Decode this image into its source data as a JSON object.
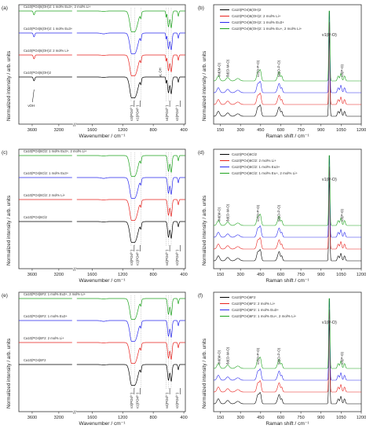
{
  "figure": {
    "panels": [
      {
        "letter": "(a)",
        "kind": "ftir",
        "legend": [
          "Ca10(PO4)6(OH)2: 1 mol% Eu3+, 2 mol% Li+",
          "Ca10(PO4)6(OH)2: 1 mol% Eu3+",
          "Ca10(PO4)6(OH)2: 2 mol% Li+",
          "Ca10(PO4)6(OH)2"
        ],
        "extra_label": "νOH",
        "liboh": "νL OH"
      },
      {
        "letter": "(b)",
        "kind": "raman",
        "legend": [
          "Ca10(PO4)6(OH)2",
          "Ca10(PO4)6(OH)2: 2 mol% Li+",
          "Ca10(PO4)6(OH)2: 1 mol% Eu3+",
          "Ca10(PO4)6(OH)2: 1 mol% Eu+, 2 mol% Li+"
        ]
      },
      {
        "letter": "(c)",
        "kind": "ftir",
        "legend": [
          "Ca10(PO4)6Cl2: 1 mol% Eu3+, 2 mol% Li+",
          "Ca10(PO4)6Cl2: 1 mol% Eu3+",
          "Ca10(PO4)6Cl2: 2 mol% Li+",
          "Ca10(PO4)6Cl2"
        ]
      },
      {
        "letter": "(d)",
        "kind": "raman",
        "legend": [
          "Ca10(PO4)6Cl2",
          "Ca10(PO4)6Cl2: 2 mol% Li+",
          "Ca10(PO4)6Cl2: 1 mol% Eu3+",
          "Ca10(PO4)6Cl2: 1 mol% Eu+, 2 mol% Li+"
        ]
      },
      {
        "letter": "(e)",
        "kind": "ftir",
        "legend": [
          "Ca10(PO4)6F2: 1 mol% Eu3+, 2 mol% Li+",
          "Ca10(PO4)6F2: 1 mol% Eu3+",
          "Ca10(PO4)6F2: 2 mol% Li+",
          "Ca10(PO4)6F2"
        ]
      },
      {
        "letter": "(f)",
        "kind": "raman",
        "legend": [
          "Ca10(PO4)6F2",
          "Ca10(PO4)6F2: 2 mol% Li+",
          "Ca10(PO4)6F2: 1 mol% Eu3+",
          "Ca10(PO4)6F2: 1 mol% Eu+, 2 mol% Li+"
        ]
      }
    ],
    "ftir_axis": {
      "xlabel": "Wavenumber / cm⁻¹",
      "ylabel": "Normalized intensity / arb. units",
      "ticks": [
        "3600",
        "3200",
        "1600",
        "1200",
        "800",
        "400"
      ]
    },
    "raman_axis": {
      "xlabel": "Raman shift / cm⁻¹",
      "ylabel": "Normalized intensity / arb. units",
      "ticks": [
        "150",
        "300",
        "450",
        "600",
        "750",
        "900",
        "1050",
        "1200"
      ]
    },
    "ftir_peak_labels": [
      "ν3(PO4³⁻)",
      "ν1(PO4³⁻)",
      "ν4(PO4³⁻)",
      "ν2(PO4³⁻)"
    ],
    "ftir_oh_label": "νL OH",
    "raman_peak_labels": [
      "ν1(P-O)",
      "νM(M-O)",
      "δd(O-M-O)",
      "ν2(O-P-O)",
      "ν4(O-P-O)",
      "ν3(P-O)"
    ]
  },
  "chart_data": [
    {
      "type": "line",
      "panel": "(a)",
      "title": "",
      "xlabel": "Wavenumber / cm-1",
      "ylabel": "Normalized intensity / arb. units",
      "xlim": [
        3800,
        380
      ],
      "x_reversed": true,
      "x_break": [
        3000,
        1800
      ],
      "x_ticks": [
        3600,
        3200,
        1600,
        1200,
        800,
        400
      ],
      "series": [
        {
          "name": "Ca10(PO4)6(OH)2",
          "color": "#000000",
          "baseline_offset": 0,
          "absorption_bands_cm-1": [
            3572,
            1090,
            1040,
            962,
            632,
            601,
            565,
            472
          ]
        },
        {
          "name": "Ca10(PO4)6(OH)2: 2 mol% Li+",
          "color": "#e8211d",
          "baseline_offset": 1,
          "absorption_bands_cm-1": [
            3572,
            1090,
            1040,
            962,
            632,
            601,
            565,
            472
          ]
        },
        {
          "name": "Ca10(PO4)6(OH)2: 1 mol% Eu3+",
          "color": "#2a2aee",
          "baseline_offset": 2,
          "absorption_bands_cm-1": [
            3572,
            1090,
            1040,
            962,
            632,
            601,
            565,
            472
          ]
        },
        {
          "name": "Ca10(PO4)6(OH)2: 1 mol% Eu3+, 2 mol% Li+",
          "color": "#1ea31e",
          "baseline_offset": 3,
          "absorption_bands_cm-1": [
            3572,
            1090,
            1040,
            962,
            632,
            601,
            565,
            472
          ]
        }
      ]
    },
    {
      "type": "line",
      "panel": "(b)",
      "title": "",
      "xlabel": "Raman shift / cm-1",
      "ylabel": "Normalized intensity / arb. units",
      "xlim": [
        100,
        1200
      ],
      "x_ticks": [
        150,
        300,
        450,
        600,
        750,
        900,
        1050,
        1200
      ],
      "series": [
        {
          "name": "Ca10(PO4)6(OH)2",
          "color": "#000000",
          "baseline_offset": 0,
          "bands_cm-1": [
            130,
            200,
            430,
            448,
            580,
            590,
            605,
            962,
            1028,
            1048,
            1075
          ]
        },
        {
          "name": "Ca10(PO4)6(OH)2: 2 mol% Li+",
          "color": "#e8211d",
          "baseline_offset": 1,
          "bands_cm-1": [
            130,
            200,
            430,
            448,
            580,
            590,
            605,
            962,
            1028,
            1048,
            1075
          ]
        },
        {
          "name": "Ca10(PO4)6(OH)2: 1 mol% Eu3+",
          "color": "#2a2aee",
          "baseline_offset": 2,
          "bands_cm-1": [
            130,
            200,
            430,
            448,
            580,
            590,
            605,
            962,
            1028,
            1048,
            1075
          ]
        },
        {
          "name": "Ca10(PO4)6(OH)2: 1 mol% Eu+, 2 mol% Li+",
          "color": "#1ea31e",
          "baseline_offset": 3,
          "bands_cm-1": [
            130,
            200,
            430,
            448,
            580,
            590,
            605,
            962,
            1028,
            1048,
            1075
          ]
        }
      ]
    },
    {
      "type": "line",
      "panel": "(c)",
      "title": "",
      "xlabel": "Wavenumber / cm-1",
      "ylabel": "Normalized intensity / arb. units",
      "xlim": [
        3800,
        380
      ],
      "x_reversed": true,
      "x_break": [
        3000,
        1800
      ],
      "x_ticks": [
        3600,
        3200,
        1600,
        1200,
        800,
        400
      ],
      "series": [
        {
          "name": "Ca10(PO4)6Cl2",
          "color": "#000000",
          "baseline_offset": 0,
          "absorption_bands_cm-1": [
            1090,
            1040,
            962,
            601,
            565,
            472
          ]
        },
        {
          "name": "Ca10(PO4)6Cl2: 2 mol% Li+",
          "color": "#e8211d",
          "baseline_offset": 1,
          "absorption_bands_cm-1": [
            1090,
            1040,
            962,
            601,
            565,
            472
          ]
        },
        {
          "name": "Ca10(PO4)6Cl2: 1 mol% Eu3+",
          "color": "#2a2aee",
          "baseline_offset": 2,
          "absorption_bands_cm-1": [
            1090,
            1040,
            962,
            601,
            565,
            472
          ]
        },
        {
          "name": "Ca10(PO4)6Cl2: 1 mol% Eu3+, 2 mol% Li+",
          "color": "#1ea31e",
          "baseline_offset": 3,
          "absorption_bands_cm-1": [
            1090,
            1040,
            962,
            601,
            565,
            472
          ]
        }
      ]
    },
    {
      "type": "line",
      "panel": "(d)",
      "title": "",
      "xlabel": "Raman shift / cm-1",
      "ylabel": "Normalized intensity / arb. units",
      "xlim": [
        100,
        1200
      ],
      "x_ticks": [
        150,
        300,
        450,
        600,
        750,
        900,
        1050,
        1200
      ],
      "series": [
        {
          "name": "Ca10(PO4)6Cl2",
          "color": "#000000",
          "baseline_offset": 0,
          "bands_cm-1": [
            130,
            200,
            430,
            448,
            580,
            590,
            605,
            962,
            1028,
            1048,
            1075
          ]
        },
        {
          "name": "Ca10(PO4)6Cl2: 2 mol% Li+",
          "color": "#e8211d",
          "baseline_offset": 1,
          "bands_cm-1": [
            130,
            200,
            430,
            448,
            580,
            590,
            605,
            962,
            1028,
            1048,
            1075
          ]
        },
        {
          "name": "Ca10(PO4)6Cl2: 1 mol% Eu3+",
          "color": "#2a2aee",
          "baseline_offset": 2,
          "bands_cm-1": [
            130,
            200,
            430,
            448,
            580,
            590,
            605,
            962,
            1028,
            1048,
            1075
          ]
        },
        {
          "name": "Ca10(PO4)6Cl2: 1 mol% Eu+, 2 mol% Li+",
          "color": "#1ea31e",
          "baseline_offset": 3,
          "bands_cm-1": [
            130,
            200,
            430,
            448,
            580,
            590,
            605,
            962,
            1028,
            1048,
            1075
          ]
        }
      ]
    },
    {
      "type": "line",
      "panel": "(e)",
      "title": "",
      "xlabel": "Wavenumber / cm-1",
      "ylabel": "Normalized intensity / arb. units",
      "xlim": [
        3800,
        380
      ],
      "x_reversed": true,
      "x_break": [
        3000,
        1800
      ],
      "x_ticks": [
        3600,
        3200,
        1600,
        1200,
        800,
        400
      ],
      "series": [
        {
          "name": "Ca10(PO4)6F2",
          "color": "#000000",
          "baseline_offset": 0,
          "absorption_bands_cm-1": [
            1090,
            1040,
            962,
            601,
            565,
            472
          ]
        },
        {
          "name": "Ca10(PO4)6F2: 2 mol% Li+",
          "color": "#e8211d",
          "baseline_offset": 1,
          "absorption_bands_cm-1": [
            1090,
            1040,
            962,
            601,
            565,
            472
          ]
        },
        {
          "name": "Ca10(PO4)6F2: 1 mol% Eu3+",
          "color": "#2a2aee",
          "baseline_offset": 2,
          "absorption_bands_cm-1": [
            1090,
            1040,
            962,
            601,
            565,
            472
          ]
        },
        {
          "name": "Ca10(PO4)6F2: 1 mol% Eu3+, 2 mol% Li+",
          "color": "#1ea31e",
          "baseline_offset": 3,
          "absorption_bands_cm-1": [
            1090,
            1040,
            962,
            601,
            565,
            472
          ]
        }
      ]
    },
    {
      "type": "line",
      "panel": "(f)",
      "title": "",
      "xlabel": "Raman shift / cm-1",
      "ylabel": "Normalized intensity / arb. units",
      "xlim": [
        100,
        1200
      ],
      "x_ticks": [
        150,
        300,
        450,
        600,
        750,
        900,
        1050,
        1200
      ],
      "series": [
        {
          "name": "Ca10(PO4)6F2",
          "color": "#000000",
          "baseline_offset": 0,
          "bands_cm-1": [
            130,
            200,
            430,
            448,
            580,
            590,
            605,
            962,
            1028,
            1048,
            1075
          ]
        },
        {
          "name": "Ca10(PO4)6F2: 2 mol% Li+",
          "color": "#e8211d",
          "baseline_offset": 1,
          "bands_cm-1": [
            130,
            200,
            430,
            448,
            580,
            590,
            605,
            962,
            1028,
            1048,
            1075
          ]
        },
        {
          "name": "Ca10(PO4)6F2: 1 mol% Eu3+",
          "color": "#2a2aee",
          "baseline_offset": 2,
          "bands_cm-1": [
            130,
            200,
            430,
            448,
            580,
            590,
            605,
            962,
            1028,
            1048,
            1075
          ]
        },
        {
          "name": "Ca10(PO4)6F2: 1 mol% Eu+, 2 mol% Li+",
          "color": "#1ea31e",
          "baseline_offset": 3,
          "bands_cm-1": [
            130,
            200,
            430,
            448,
            580,
            590,
            605,
            962,
            1028,
            1048,
            1075
          ]
        }
      ]
    }
  ]
}
